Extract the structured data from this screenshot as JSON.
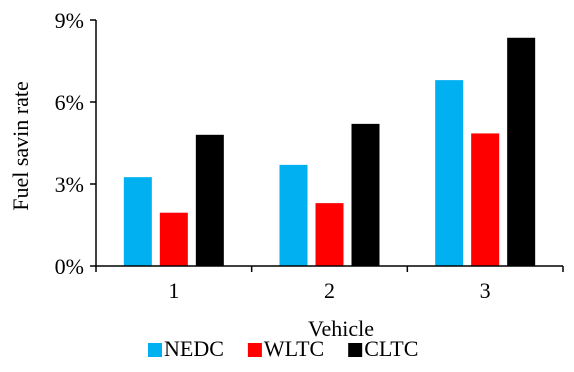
{
  "chart_data": {
    "type": "bar",
    "categories": [
      "1",
      "2",
      "3"
    ],
    "series": [
      {
        "name": "NEDC",
        "color": "#00B0F0",
        "values": [
          3.25,
          3.7,
          6.8
        ]
      },
      {
        "name": "WLTC",
        "color": "#FF0000",
        "values": [
          1.95,
          2.3,
          4.85
        ]
      },
      {
        "name": "CLTC",
        "color": "#000000",
        "values": [
          4.8,
          5.2,
          8.35
        ]
      }
    ],
    "xlabel": "Vehicle",
    "ylabel": "Fuel savin rate",
    "ylim": [
      0,
      9
    ],
    "yticks": [
      0,
      3,
      6,
      9
    ],
    "ytick_labels": [
      "0%",
      "3%",
      "6%",
      "9%"
    ],
    "legend_position": "bottom",
    "grid": false
  }
}
